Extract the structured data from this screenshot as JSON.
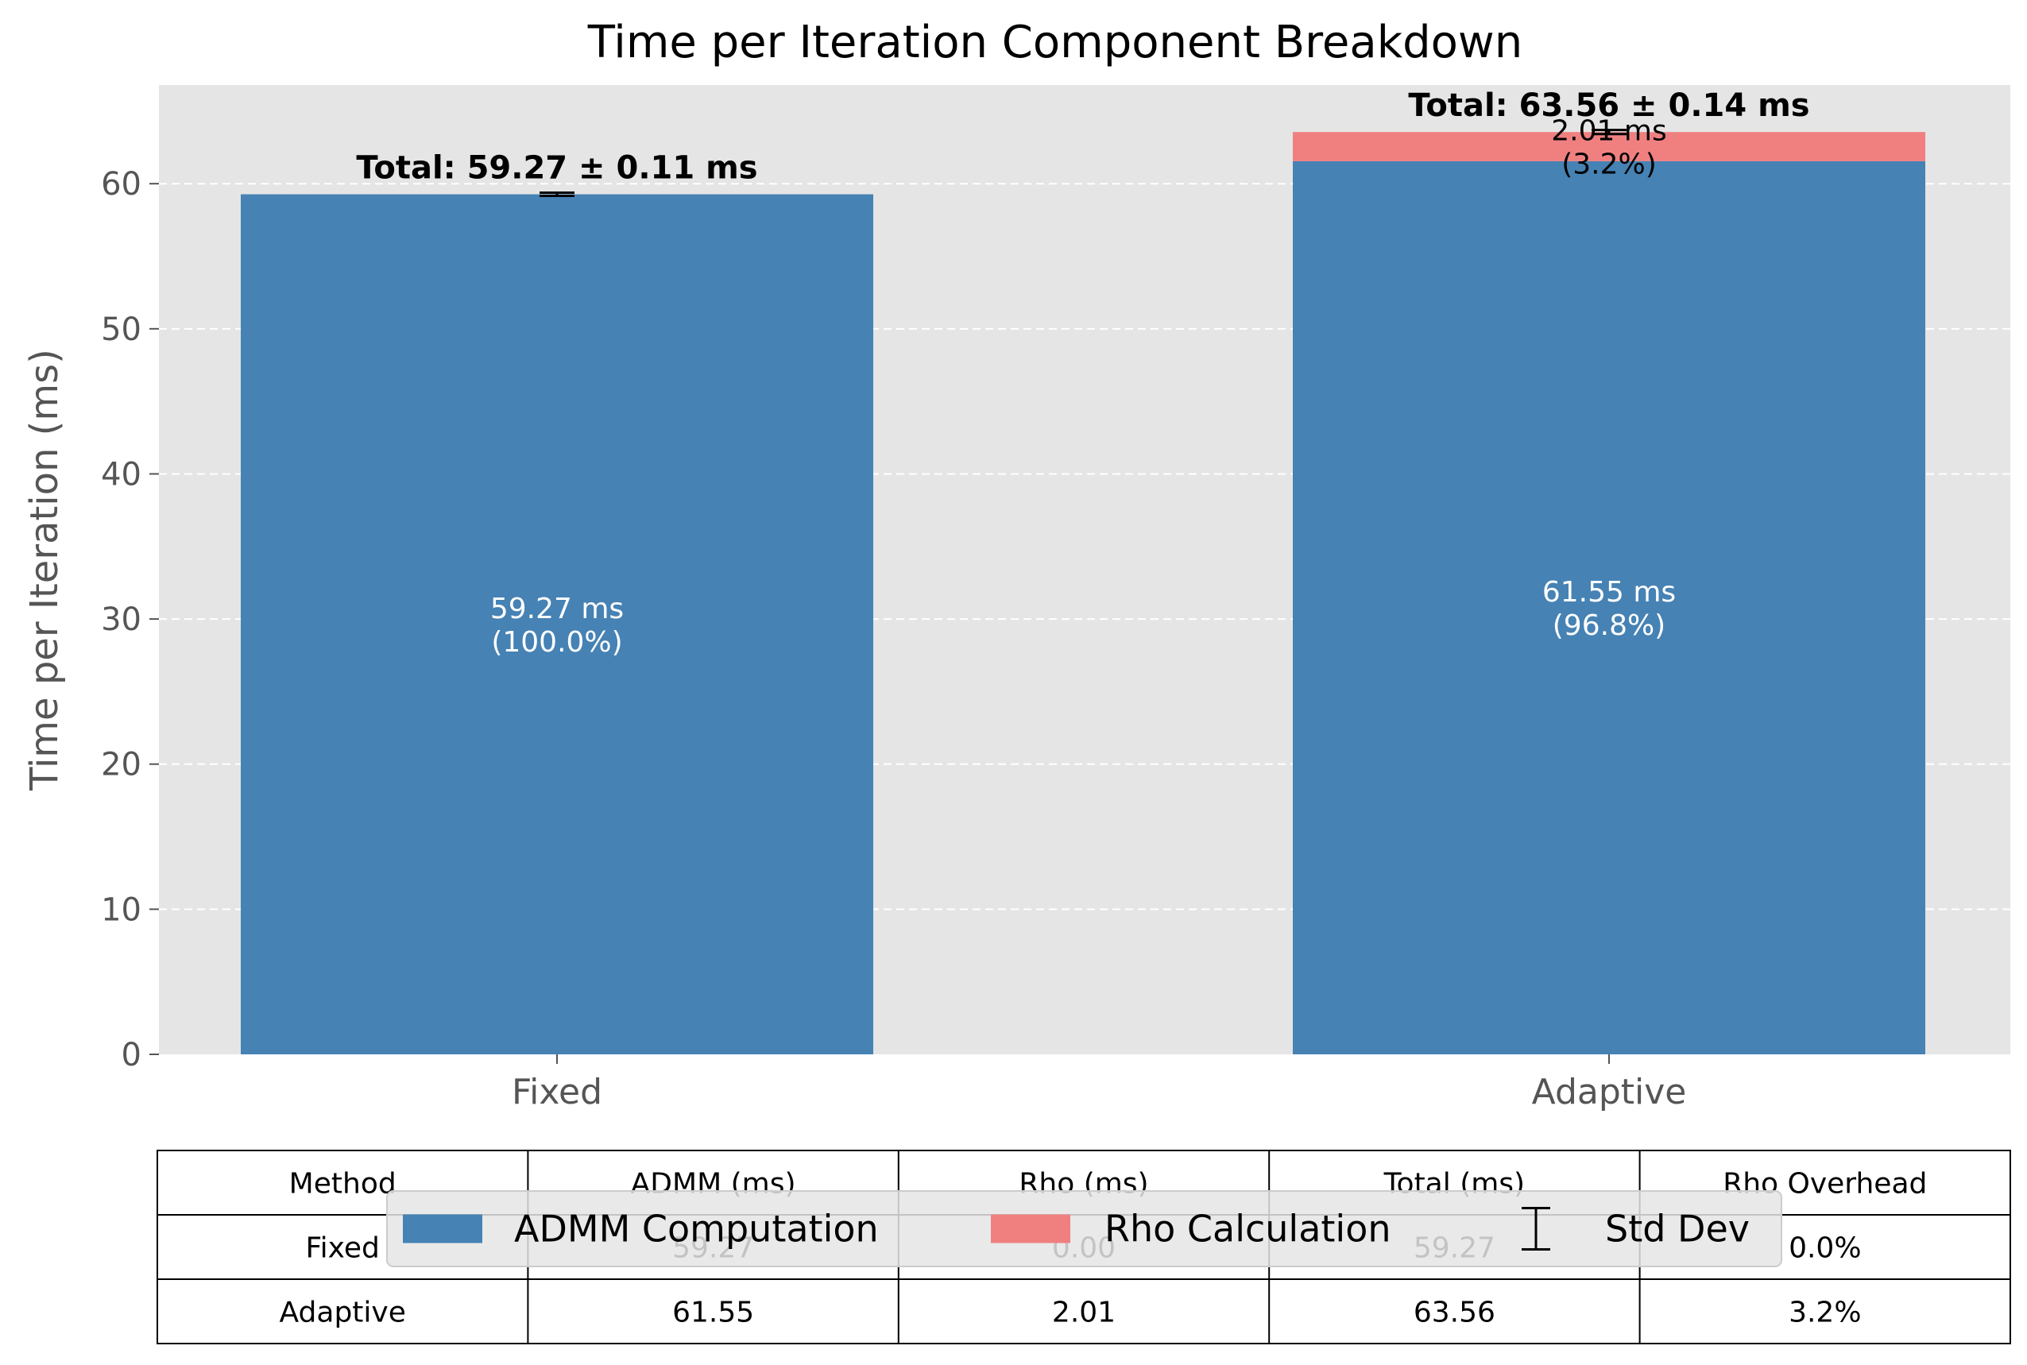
{
  "chart_data": {
    "type": "bar",
    "stacked": true,
    "title": "Time per Iteration Component Breakdown",
    "xlabel": "",
    "ylabel": "Time per Iteration (ms)",
    "categories": [
      "Fixed",
      "Adaptive"
    ],
    "ylim": [
      0,
      66.8
    ],
    "yticks": [
      0,
      10,
      20,
      30,
      40,
      50,
      60
    ],
    "grid": true,
    "series": [
      {
        "name": "ADMM Computation",
        "values": [
          59.27,
          61.55
        ],
        "color": "#4682b4",
        "labels": [
          [
            "59.27 ms",
            "(100.0%)"
          ],
          [
            "61.55 ms",
            "(96.8%)"
          ]
        ]
      },
      {
        "name": "Rho Calculation",
        "values": [
          0.0,
          2.01
        ],
        "color": "#f08080",
        "labels": [
          null,
          [
            "2.01 ms",
            "(3.2%)"
          ]
        ]
      }
    ],
    "totals": [
      59.27,
      63.56
    ],
    "std": [
      0.11,
      0.14
    ],
    "total_labels": [
      "Total: 59.27 ± 0.11 ms",
      "Total: 63.56 ± 0.14 ms"
    ],
    "legend": {
      "placement": "bottom-center",
      "entries": [
        "ADMM Computation",
        "Rho Calculation",
        "Std Dev"
      ]
    },
    "table": {
      "headers": [
        "Method",
        "ADMM (ms)",
        "Rho (ms)",
        "Total (ms)",
        "Rho Overhead"
      ],
      "rows": [
        [
          "Fixed",
          "59.27",
          "0.00",
          "59.27",
          "0.0%"
        ],
        [
          "Adaptive",
          "61.55",
          "2.01",
          "63.56",
          "3.2%"
        ]
      ]
    }
  }
}
